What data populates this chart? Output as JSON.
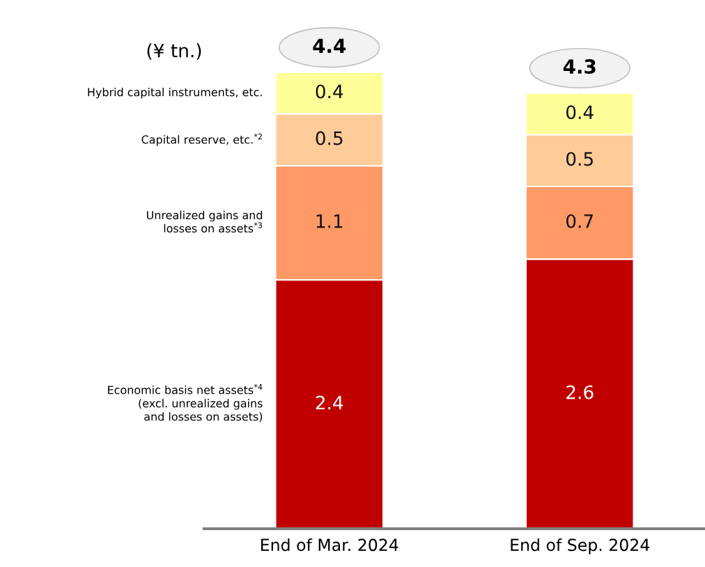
{
  "chart_data": {
    "type": "bar",
    "stacked": true,
    "ylabel": "(¥ tn.)",
    "categories": [
      "End of Mar. 2024",
      "End of Sep. 2024"
    ],
    "series": [
      {
        "name": "Economic basis net assets$^{*4}$\n(excl. unrealized gains\nand losses on assets)",
        "color": "#c00000",
        "values": [
          2.4,
          2.6
        ]
      },
      {
        "name": "Unrealized gains and\nlosses on assets$^{*3}$",
        "color": "#ff9966",
        "values": [
          1.1,
          0.7
        ]
      },
      {
        "name": "Capital reserve, etc.$^{*2}$",
        "color": "#ffcc99",
        "values": [
          0.5,
          0.5
        ]
      },
      {
        "name": "Hybrid capital instruments, etc.",
        "color": "#ffff99",
        "values": [
          0.4,
          0.4
        ]
      }
    ],
    "data_labels": true,
    "totals": [
      "4.4",
      "4.3"
    ],
    "tick_labels": "x",
    "grid": false,
    "legend": false
  }
}
